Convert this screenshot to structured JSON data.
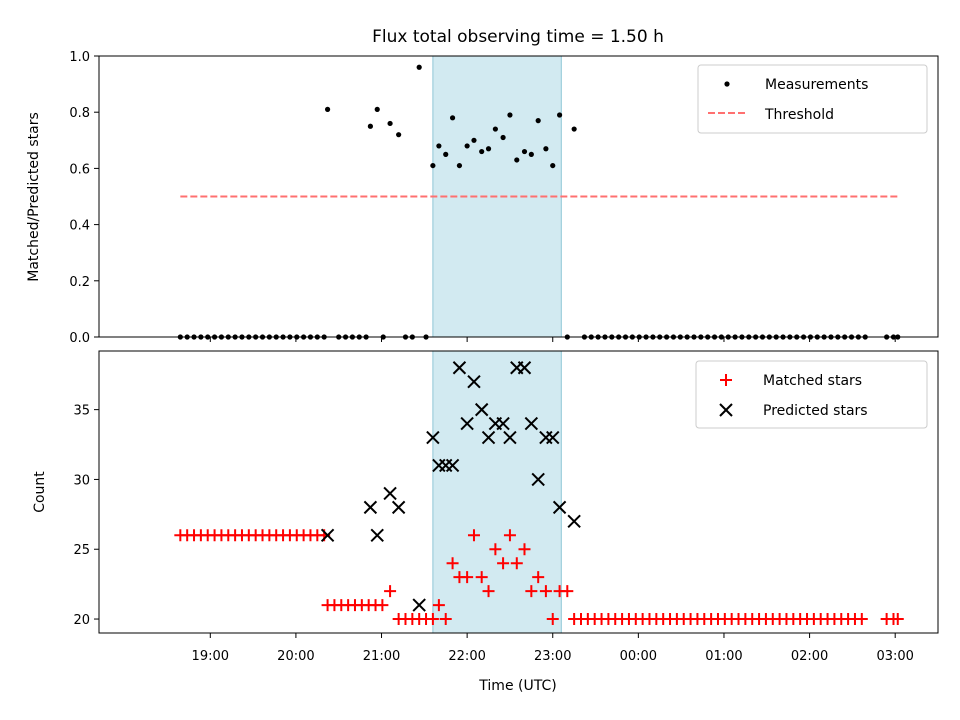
{
  "chart_data": {
    "title": "Flux total observing time = 1.50 h",
    "x_axis": {
      "label": "Time (UTC)",
      "unit": "hours since 00:00 UTC on the first day",
      "range": [
        17.7,
        27.5
      ],
      "tick_values": [
        19,
        20,
        21,
        22,
        23,
        24,
        25,
        26,
        27
      ],
      "tick_labels": [
        "19:00",
        "20:00",
        "21:00",
        "22:00",
        "23:00",
        "00:00",
        "01:00",
        "02:00",
        "03:00"
      ]
    },
    "shaded_interval": {
      "x_start": 21.6,
      "x_end": 23.1,
      "color": "#add8e6"
    },
    "panels": [
      {
        "type": "scatter",
        "ylabel": "Matched/Predicted stars",
        "ylim": [
          0,
          1
        ],
        "y_ticks": [
          "0.0",
          "0.2",
          "0.4",
          "0.6",
          "0.8",
          "1.0"
        ],
        "legend": {
          "position": "upper right"
        },
        "series": [
          {
            "name": "Measurements",
            "marker": "dot",
            "color": "#000000",
            "points": [
              [
                18.65,
                0
              ],
              [
                18.73,
                0
              ],
              [
                18.81,
                0
              ],
              [
                18.89,
                0
              ],
              [
                18.97,
                0
              ],
              [
                19.05,
                0
              ],
              [
                19.13,
                0
              ],
              [
                19.21,
                0
              ],
              [
                19.29,
                0
              ],
              [
                19.37,
                0
              ],
              [
                19.45,
                0
              ],
              [
                19.53,
                0
              ],
              [
                19.61,
                0
              ],
              [
                19.69,
                0
              ],
              [
                19.77,
                0
              ],
              [
                19.85,
                0
              ],
              [
                19.93,
                0
              ],
              [
                20.01,
                0
              ],
              [
                20.09,
                0
              ],
              [
                20.17,
                0
              ],
              [
                20.25,
                0
              ],
              [
                20.33,
                0
              ],
              [
                20.37,
                0.81
              ],
              [
                20.5,
                0
              ],
              [
                20.58,
                0
              ],
              [
                20.66,
                0
              ],
              [
                20.74,
                0
              ],
              [
                20.82,
                0
              ],
              [
                20.87,
                0.75
              ],
              [
                20.95,
                0.81
              ],
              [
                21.02,
                0
              ],
              [
                21.1,
                0.76
              ],
              [
                21.2,
                0.72
              ],
              [
                21.28,
                0
              ],
              [
                21.36,
                0
              ],
              [
                21.44,
                0.96
              ],
              [
                21.52,
                0
              ],
              [
                21.6,
                0.61
              ],
              [
                21.67,
                0.68
              ],
              [
                21.75,
                0.65
              ],
              [
                21.83,
                0.78
              ],
              [
                21.91,
                0.61
              ],
              [
                22.0,
                0.68
              ],
              [
                22.08,
                0.7
              ],
              [
                22.17,
                0.66
              ],
              [
                22.25,
                0.67
              ],
              [
                22.33,
                0.74
              ],
              [
                22.42,
                0.71
              ],
              [
                22.5,
                0.79
              ],
              [
                22.58,
                0.63
              ],
              [
                22.67,
                0.66
              ],
              [
                22.75,
                0.65
              ],
              [
                22.83,
                0.77
              ],
              [
                22.92,
                0.67
              ],
              [
                23.0,
                0.61
              ],
              [
                23.08,
                0.79
              ],
              [
                23.17,
                0
              ],
              [
                23.25,
                0.74
              ],
              [
                23.37,
                0
              ],
              [
                23.45,
                0
              ],
              [
                23.53,
                0
              ],
              [
                23.61,
                0
              ],
              [
                23.69,
                0
              ],
              [
                23.77,
                0
              ],
              [
                23.85,
                0
              ],
              [
                23.93,
                0
              ],
              [
                24.01,
                0
              ],
              [
                24.09,
                0
              ],
              [
                24.17,
                0
              ],
              [
                24.25,
                0
              ],
              [
                24.33,
                0
              ],
              [
                24.41,
                0
              ],
              [
                24.49,
                0
              ],
              [
                24.57,
                0
              ],
              [
                24.65,
                0
              ],
              [
                24.73,
                0
              ],
              [
                24.81,
                0
              ],
              [
                24.89,
                0
              ],
              [
                24.97,
                0
              ],
              [
                25.05,
                0
              ],
              [
                25.13,
                0
              ],
              [
                25.21,
                0
              ],
              [
                25.29,
                0
              ],
              [
                25.37,
                0
              ],
              [
                25.45,
                0
              ],
              [
                25.53,
                0
              ],
              [
                25.61,
                0
              ],
              [
                25.69,
                0
              ],
              [
                25.77,
                0
              ],
              [
                25.85,
                0
              ],
              [
                25.93,
                0
              ],
              [
                26.01,
                0
              ],
              [
                26.09,
                0
              ],
              [
                26.17,
                0
              ],
              [
                26.25,
                0
              ],
              [
                26.33,
                0
              ],
              [
                26.41,
                0
              ],
              [
                26.49,
                0
              ],
              [
                26.57,
                0
              ],
              [
                26.65,
                0
              ],
              [
                26.9,
                0
              ],
              [
                26.98,
                0
              ],
              [
                27.03,
                0
              ]
            ]
          },
          {
            "name": "Threshold",
            "type": "line",
            "style": "dashed",
            "color": "#ff7070",
            "points": [
              [
                18.65,
                0.5
              ],
              [
                27.03,
                0.5
              ]
            ]
          }
        ]
      },
      {
        "type": "scatter",
        "ylabel": "Count",
        "ylim": [
          19.0,
          39.2
        ],
        "y_ticks": [
          "20",
          "25",
          "30",
          "35"
        ],
        "legend": {
          "position": "upper right"
        },
        "series": [
          {
            "name": "Matched stars",
            "marker": "plus",
            "color": "#ff0000",
            "points": [
              [
                18.65,
                26
              ],
              [
                18.73,
                26
              ],
              [
                18.81,
                26
              ],
              [
                18.89,
                26
              ],
              [
                18.97,
                26
              ],
              [
                19.05,
                26
              ],
              [
                19.13,
                26
              ],
              [
                19.21,
                26
              ],
              [
                19.29,
                26
              ],
              [
                19.37,
                26
              ],
              [
                19.45,
                26
              ],
              [
                19.53,
                26
              ],
              [
                19.61,
                26
              ],
              [
                19.69,
                26
              ],
              [
                19.77,
                26
              ],
              [
                19.85,
                26
              ],
              [
                19.93,
                26
              ],
              [
                20.01,
                26
              ],
              [
                20.09,
                26
              ],
              [
                20.17,
                26
              ],
              [
                20.25,
                26
              ],
              [
                20.33,
                26
              ],
              [
                20.37,
                21
              ],
              [
                20.45,
                21
              ],
              [
                20.53,
                21
              ],
              [
                20.61,
                21
              ],
              [
                20.69,
                21
              ],
              [
                20.77,
                21
              ],
              [
                20.85,
                21
              ],
              [
                20.93,
                21
              ],
              [
                21.01,
                21
              ],
              [
                21.1,
                22
              ],
              [
                21.2,
                20
              ],
              [
                21.28,
                20
              ],
              [
                21.36,
                20
              ],
              [
                21.44,
                20
              ],
              [
                21.52,
                20
              ],
              [
                21.6,
                20
              ],
              [
                21.67,
                21
              ],
              [
                21.75,
                20
              ],
              [
                21.83,
                24
              ],
              [
                21.91,
                23
              ],
              [
                22.0,
                23
              ],
              [
                22.08,
                26
              ],
              [
                22.17,
                23
              ],
              [
                22.25,
                22
              ],
              [
                22.33,
                25
              ],
              [
                22.42,
                24
              ],
              [
                22.5,
                26
              ],
              [
                22.58,
                24
              ],
              [
                22.67,
                25
              ],
              [
                22.75,
                22
              ],
              [
                22.83,
                23
              ],
              [
                22.92,
                22
              ],
              [
                23.0,
                20
              ],
              [
                23.08,
                22
              ],
              [
                23.17,
                22
              ],
              [
                23.25,
                20
              ],
              [
                23.33,
                20
              ],
              [
                23.41,
                20
              ],
              [
                23.49,
                20
              ],
              [
                23.57,
                20
              ],
              [
                23.65,
                20
              ],
              [
                23.73,
                20
              ],
              [
                23.81,
                20
              ],
              [
                23.89,
                20
              ],
              [
                23.97,
                20
              ],
              [
                24.05,
                20
              ],
              [
                24.13,
                20
              ],
              [
                24.21,
                20
              ],
              [
                24.29,
                20
              ],
              [
                24.37,
                20
              ],
              [
                24.45,
                20
              ],
              [
                24.53,
                20
              ],
              [
                24.61,
                20
              ],
              [
                24.69,
                20
              ],
              [
                24.77,
                20
              ],
              [
                24.85,
                20
              ],
              [
                24.93,
                20
              ],
              [
                25.01,
                20
              ],
              [
                25.09,
                20
              ],
              [
                25.17,
                20
              ],
              [
                25.25,
                20
              ],
              [
                25.33,
                20
              ],
              [
                25.41,
                20
              ],
              [
                25.49,
                20
              ],
              [
                25.57,
                20
              ],
              [
                25.65,
                20
              ],
              [
                25.73,
                20
              ],
              [
                25.81,
                20
              ],
              [
                25.89,
                20
              ],
              [
                25.97,
                20
              ],
              [
                26.05,
                20
              ],
              [
                26.13,
                20
              ],
              [
                26.21,
                20
              ],
              [
                26.29,
                20
              ],
              [
                26.37,
                20
              ],
              [
                26.45,
                20
              ],
              [
                26.53,
                20
              ],
              [
                26.61,
                20
              ],
              [
                26.9,
                20
              ],
              [
                26.98,
                20
              ],
              [
                27.03,
                20
              ]
            ]
          },
          {
            "name": "Predicted stars",
            "marker": "x",
            "color": "#000000",
            "points": [
              [
                20.37,
                26
              ],
              [
                20.87,
                28
              ],
              [
                20.95,
                26
              ],
              [
                21.1,
                29
              ],
              [
                21.2,
                28
              ],
              [
                21.44,
                21
              ],
              [
                21.6,
                33
              ],
              [
                21.67,
                31
              ],
              [
                21.75,
                31
              ],
              [
                21.83,
                31
              ],
              [
                21.91,
                38
              ],
              [
                22.0,
                34
              ],
              [
                22.08,
                37
              ],
              [
                22.17,
                35
              ],
              [
                22.25,
                33
              ],
              [
                22.33,
                34
              ],
              [
                22.42,
                34
              ],
              [
                22.5,
                33
              ],
              [
                22.58,
                38
              ],
              [
                22.67,
                38
              ],
              [
                22.75,
                34
              ],
              [
                22.83,
                30
              ],
              [
                22.92,
                33
              ],
              [
                23.0,
                33
              ],
              [
                23.08,
                28
              ],
              [
                23.25,
                27
              ]
            ]
          }
        ]
      }
    ]
  }
}
